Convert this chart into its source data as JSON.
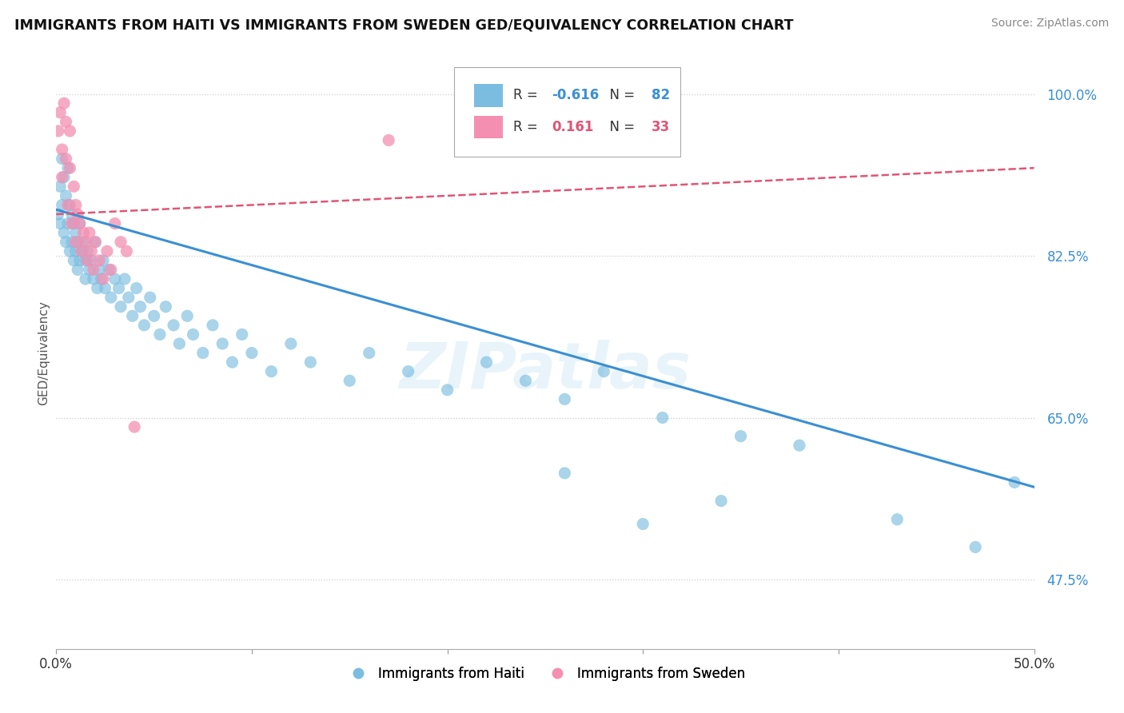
{
  "title": "IMMIGRANTS FROM HAITI VS IMMIGRANTS FROM SWEDEN GED/EQUIVALENCY CORRELATION CHART",
  "source": "Source: ZipAtlas.com",
  "ylabel": "GED/Equivalency",
  "ytick_vals": [
    0.475,
    0.65,
    0.825,
    1.0
  ],
  "ytick_labels": [
    "47.5%",
    "65.0%",
    "82.5%",
    "100.0%"
  ],
  "xmin": 0.0,
  "xmax": 0.5,
  "ymin": 0.4,
  "ymax": 1.04,
  "legend_haiti": "Immigrants from Haiti",
  "legend_sweden": "Immigrants from Sweden",
  "r_haiti": -0.616,
  "n_haiti": 82,
  "r_sweden": 0.161,
  "n_sweden": 33,
  "color_haiti": "#7bbde0",
  "color_sweden": "#f48fb1",
  "trendline_haiti": "#3a8fd4",
  "trendline_sweden": "#e05575",
  "watermark": "ZIPatlas",
  "haiti_x": [
    0.001,
    0.002,
    0.002,
    0.003,
    0.003,
    0.004,
    0.004,
    0.005,
    0.005,
    0.006,
    0.006,
    0.007,
    0.007,
    0.008,
    0.008,
    0.009,
    0.009,
    0.01,
    0.01,
    0.011,
    0.011,
    0.012,
    0.012,
    0.013,
    0.014,
    0.015,
    0.015,
    0.016,
    0.017,
    0.018,
    0.019,
    0.02,
    0.021,
    0.022,
    0.023,
    0.024,
    0.025,
    0.027,
    0.028,
    0.03,
    0.032,
    0.033,
    0.035,
    0.037,
    0.039,
    0.041,
    0.043,
    0.045,
    0.048,
    0.05,
    0.053,
    0.056,
    0.06,
    0.063,
    0.067,
    0.07,
    0.075,
    0.08,
    0.085,
    0.09,
    0.095,
    0.1,
    0.11,
    0.12,
    0.13,
    0.15,
    0.16,
    0.18,
    0.2,
    0.22,
    0.24,
    0.26,
    0.28,
    0.31,
    0.35,
    0.38,
    0.34,
    0.43,
    0.47,
    0.49,
    0.26,
    0.3
  ],
  "haiti_y": [
    0.87,
    0.9,
    0.86,
    0.93,
    0.88,
    0.91,
    0.85,
    0.89,
    0.84,
    0.92,
    0.86,
    0.88,
    0.83,
    0.87,
    0.84,
    0.86,
    0.82,
    0.85,
    0.83,
    0.84,
    0.81,
    0.86,
    0.82,
    0.83,
    0.84,
    0.82,
    0.8,
    0.83,
    0.81,
    0.82,
    0.8,
    0.84,
    0.79,
    0.81,
    0.8,
    0.82,
    0.79,
    0.81,
    0.78,
    0.8,
    0.79,
    0.77,
    0.8,
    0.78,
    0.76,
    0.79,
    0.77,
    0.75,
    0.78,
    0.76,
    0.74,
    0.77,
    0.75,
    0.73,
    0.76,
    0.74,
    0.72,
    0.75,
    0.73,
    0.71,
    0.74,
    0.72,
    0.7,
    0.73,
    0.71,
    0.69,
    0.72,
    0.7,
    0.68,
    0.71,
    0.69,
    0.67,
    0.7,
    0.65,
    0.63,
    0.62,
    0.56,
    0.54,
    0.51,
    0.58,
    0.59,
    0.535
  ],
  "sweden_x": [
    0.001,
    0.002,
    0.003,
    0.003,
    0.004,
    0.005,
    0.005,
    0.006,
    0.007,
    0.007,
    0.008,
    0.009,
    0.01,
    0.01,
    0.011,
    0.012,
    0.013,
    0.014,
    0.015,
    0.016,
    0.017,
    0.018,
    0.019,
    0.02,
    0.022,
    0.024,
    0.026,
    0.028,
    0.03,
    0.033,
    0.036,
    0.04,
    0.17
  ],
  "sweden_y": [
    0.96,
    0.98,
    0.94,
    0.91,
    0.99,
    0.97,
    0.93,
    0.88,
    0.92,
    0.96,
    0.86,
    0.9,
    0.88,
    0.84,
    0.87,
    0.86,
    0.83,
    0.85,
    0.84,
    0.82,
    0.85,
    0.83,
    0.81,
    0.84,
    0.82,
    0.8,
    0.83,
    0.81,
    0.86,
    0.84,
    0.83,
    0.64,
    0.95
  ],
  "haiti_trend_x": [
    0.0,
    0.5
  ],
  "haiti_trend_y": [
    0.875,
    0.575
  ],
  "sweden_trend_x": [
    0.0,
    0.5
  ],
  "sweden_trend_y": [
    0.87,
    0.92
  ]
}
